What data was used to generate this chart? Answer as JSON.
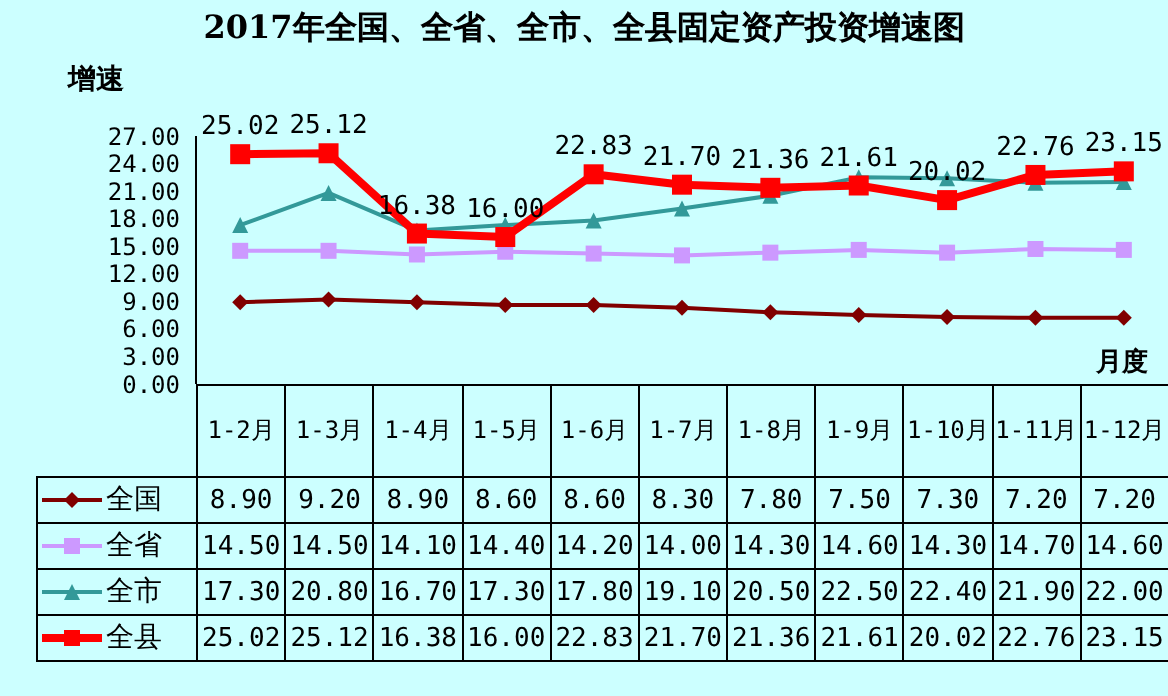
{
  "chart_data": {
    "type": "line",
    "title": "2017年全国、全省、全市、全县固定资产投资增速图",
    "ylabel": "增速",
    "xlabel": "月度",
    "categories": [
      "1-2月",
      "1-3月",
      "1-4月",
      "1-5月",
      "1-6月",
      "1-7月",
      "1-8月",
      "1-9月",
      "1-10月",
      "1-11月",
      "1-12月"
    ],
    "series": [
      {
        "name": "全国",
        "color": "#800000",
        "marker": "diamond",
        "values": [
          8.9,
          9.2,
          8.9,
          8.6,
          8.6,
          8.3,
          7.8,
          7.5,
          7.3,
          7.2,
          7.2
        ],
        "value_labels": [
          "8.90",
          "9.20",
          "8.90",
          "8.60",
          "8.60",
          "8.30",
          "7.80",
          "7.50",
          "7.30",
          "7.20",
          "7.20"
        ]
      },
      {
        "name": "全省",
        "color": "#cc99ff",
        "marker": "square",
        "values": [
          14.5,
          14.5,
          14.1,
          14.4,
          14.2,
          14.0,
          14.3,
          14.6,
          14.3,
          14.7,
          14.6
        ],
        "value_labels": [
          "14.50",
          "14.50",
          "14.10",
          "14.40",
          "14.20",
          "14.00",
          "14.30",
          "14.60",
          "14.30",
          "14.70",
          "14.60"
        ]
      },
      {
        "name": "全市",
        "color": "#339999",
        "marker": "triangle",
        "values": [
          17.3,
          20.8,
          16.7,
          17.3,
          17.8,
          19.1,
          20.5,
          22.5,
          22.4,
          21.9,
          22.0
        ],
        "value_labels": [
          "17.30",
          "20.80",
          "16.70",
          "17.30",
          "17.80",
          "19.10",
          "20.50",
          "22.50",
          "22.40",
          "21.90",
          "22.00"
        ]
      },
      {
        "name": "全县",
        "color": "#ff0000",
        "marker": "square",
        "values": [
          25.02,
          25.12,
          16.38,
          16.0,
          22.83,
          21.7,
          21.36,
          21.61,
          20.02,
          22.76,
          23.15
        ],
        "value_labels": [
          "25.02",
          "25.12",
          "16.38",
          "16.00",
          "22.83",
          "21.70",
          "21.36",
          "21.61",
          "20.02",
          "22.76",
          "23.15"
        ]
      }
    ],
    "ylim": [
      0,
      27
    ],
    "yticks": [
      {
        "value": 0,
        "label": "0.00"
      },
      {
        "value": 3,
        "label": "3.00"
      },
      {
        "value": 6,
        "label": "6.00"
      },
      {
        "value": 9,
        "label": "9.00"
      },
      {
        "value": 12,
        "label": "12.00"
      },
      {
        "value": 15,
        "label": "15.00"
      },
      {
        "value": 18,
        "label": "18.00"
      },
      {
        "value": 21,
        "label": "21.00"
      },
      {
        "value": 24,
        "label": "24.00"
      },
      {
        "value": 27,
        "label": "27.00"
      }
    ],
    "legend": "bottom",
    "grid": false,
    "line_style": "solid"
  }
}
